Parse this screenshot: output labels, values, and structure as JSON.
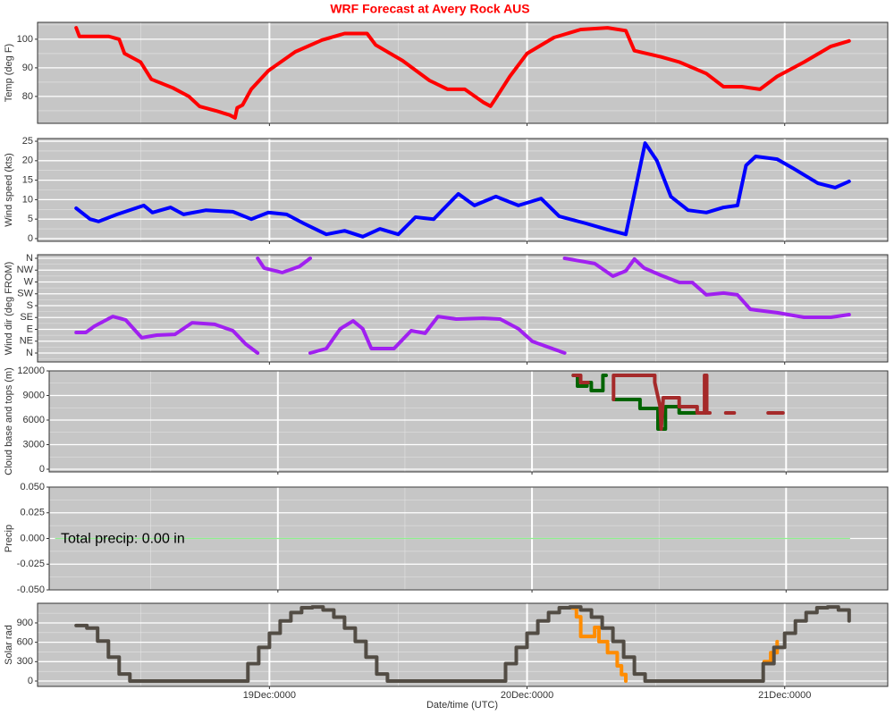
{
  "title": "WRF Forecast at Avery Rock AUS",
  "xlabel": "Date/time (UTC)",
  "chart_data": [
    {
      "type": "line",
      "ylabel": "Temp (deg F)",
      "xlim": [
        2.4,
        81.6
      ],
      "xticks": [
        24,
        48,
        72
      ],
      "ylim": [
        70.6,
        105.9
      ],
      "yticks": [
        80,
        90,
        100
      ],
      "grid": true,
      "series": [
        {
          "color": "#ff0000",
          "x": [
            6.0,
            6.3,
            9.0,
            10.0,
            10.5,
            12.0,
            13.0,
            15.0,
            16.5,
            17.5,
            19.0,
            20.3,
            20.8,
            21.0,
            21.5,
            22.3,
            23.9,
            26.4,
            28.9,
            31.0,
            33.1,
            33.9,
            36.4,
            38.9,
            40.6,
            42.2,
            43.9,
            44.6,
            45.1,
            46.4,
            48.0,
            50.5,
            53.0,
            55.5,
            57.2,
            58.0,
            60.5,
            62.2,
            64.7,
            66.3,
            68.0,
            69.7,
            71.3,
            73.8,
            76.3,
            78.0
          ],
          "values": [
            104,
            101,
            101,
            100,
            95,
            92,
            86,
            83,
            80,
            76.5,
            75,
            73.5,
            72.5,
            76,
            77,
            82.5,
            89,
            95.6,
            99.7,
            102,
            102,
            98,
            92.5,
            85.6,
            82.5,
            82.5,
            78,
            76.6,
            79.4,
            87,
            95,
            100.6,
            103.4,
            104,
            103,
            96,
            93.8,
            92,
            88,
            83.4,
            83.4,
            82.5,
            87,
            92,
            97.5,
            99.4
          ]
        }
      ]
    },
    {
      "type": "line",
      "ylabel": "Wind speed (kts)",
      "xlim": [
        2.4,
        81.6
      ],
      "xticks": [
        24,
        48,
        72
      ],
      "ylim": [
        -0.7,
        25.7
      ],
      "yticks": [
        0,
        5,
        10,
        15,
        20,
        25
      ],
      "grid": true,
      "series": [
        {
          "color": "#0000ff",
          "x": [
            6.0,
            7.3,
            8.1,
            9.8,
            12.3,
            13.1,
            14.8,
            16.0,
            18.1,
            20.6,
            22.3,
            23.9,
            25.6,
            27.2,
            29.3,
            31.0,
            32.7,
            34.3,
            36.0,
            37.6,
            39.3,
            40.1,
            41.6,
            43.1,
            45.1,
            47.2,
            49.3,
            51.0,
            53.5,
            55.5,
            57.2,
            58.3,
            59.0,
            60.1,
            61.4,
            63.0,
            64.7,
            66.3,
            67.6,
            68.4,
            69.3,
            71.3,
            73.0,
            75.1,
            76.7,
            78.0
          ],
          "values": [
            7.8,
            5,
            4.4,
            6.2,
            8.5,
            6.7,
            8,
            6.2,
            7.3,
            6.9,
            5,
            6.7,
            6.2,
            3.9,
            1.1,
            2,
            0.5,
            2.5,
            1.1,
            5.5,
            5,
            7.3,
            11.5,
            8.5,
            10.8,
            8.5,
            10.3,
            5.7,
            3.9,
            2.3,
            1.1,
            15.4,
            24.5,
            20,
            10.8,
            7.3,
            6.7,
            8,
            8.5,
            18.8,
            21.1,
            20.4,
            17.7,
            14.2,
            13.1,
            14.7
          ]
        }
      ]
    },
    {
      "type": "line",
      "ylabel": "Wind dir (deg FROM)",
      "xlim": [
        2.4,
        81.6
      ],
      "xticks": [
        24,
        48,
        72
      ],
      "ylim": [
        -34,
        373.6
      ],
      "yticks": [
        {
          "value": 0,
          "label": "N"
        },
        {
          "value": 45,
          "label": "NE"
        },
        {
          "value": 90,
          "label": "E"
        },
        {
          "value": 135,
          "label": "SE"
        },
        {
          "value": 180,
          "label": "S"
        },
        {
          "value": 225,
          "label": "SW"
        },
        {
          "value": 270,
          "label": "W"
        },
        {
          "value": 315,
          "label": "NW"
        },
        {
          "value": 360,
          "label": "N"
        }
      ],
      "grid": true,
      "series": [
        {
          "color": "#a020f0",
          "x": [
            6.0,
            6.9,
            7.7,
            9.4,
            10.6,
            12.1,
            13.5,
            15.2,
            16.8,
            18.9,
            20.6,
            21.8,
            22.9,
            null,
            22.9,
            23.5,
            25.2,
            26.8,
            27.8,
            null,
            27.8,
            29.3,
            30.6,
            31.8,
            32.7,
            33.5,
            35.6,
            37.2,
            38.5,
            39.7,
            41.4,
            43.9,
            45.5,
            47.2,
            48.5,
            51.5,
            null,
            51.5,
            54.3,
            56.0,
            57.2,
            58.0,
            58.9,
            60.5,
            62.2,
            63.4,
            64.7,
            66.3,
            67.6,
            68.8,
            71.3,
            73.8,
            76.3,
            78.0
          ],
          "values": [
            78,
            78,
            102,
            139,
            126,
            58,
            68,
            71,
            115,
            109,
            85,
            34,
            0,
            null,
            360,
            323,
            306,
            329,
            360,
            null,
            0,
            17,
            92,
            122,
            92,
            17,
            17,
            85,
            75,
            139,
            129,
            132,
            129,
            92,
            44,
            0,
            null,
            360,
            340,
            292,
            312,
            357,
            323,
            295,
            268,
            268,
            221,
            228,
            221,
            166,
            153,
            136,
            136,
            146
          ]
        }
      ]
    },
    {
      "type": "line",
      "ylabel": "Cloud base and tops (m)",
      "xlim": [
        2.4,
        81.6
      ],
      "xticks": [
        24,
        48,
        72
      ],
      "ylim": [
        -327,
        12000
      ],
      "yticks": [
        0,
        3000,
        6000,
        9000,
        12000
      ],
      "grid": true,
      "series": [
        {
          "color": "#006400",
          "x": [
            51.9,
            52.3,
            52.3,
            53.2,
            53.2,
            53.6,
            53.6,
            54.7,
            54.7,
            55.0,
            null,
            55.7,
            58.2,
            58.2,
            59.9,
            59.9,
            60.6,
            60.6,
            61.9,
            61.9,
            64.4
          ],
          "values": [
            11450,
            11450,
            10150,
            10150,
            10580,
            10580,
            9600,
            9600,
            11450,
            11450,
            null,
            8510,
            8510,
            7420,
            7420,
            4910,
            4910,
            7640,
            7640,
            6870,
            6870
          ]
        },
        {
          "color": "#a52a2a",
          "x": [
            51.9,
            52.6,
            52.6,
            53.3,
            null,
            55.7,
            55.7,
            59.6,
            59.6,
            60.1,
            60.2,
            60.4,
            61.9,
            61.9,
            63.6,
            63.6,
            64.3,
            64.3,
            64.5,
            64.5,
            64.8,
            null,
            66.3,
            67.1,
            null,
            70.3,
            71.7
          ],
          "values": [
            11450,
            11450,
            10580,
            10580,
            null,
            8510,
            11450,
            11450,
            10580,
            7640,
            4910,
            8730,
            8730,
            7640,
            7640,
            6870,
            6870,
            11450,
            11450,
            6870,
            6870,
            null,
            6870,
            6870,
            null,
            6870,
            6870
          ]
        }
      ]
    },
    {
      "type": "line",
      "ylabel": "Precip",
      "xlim": [
        2.4,
        81.6
      ],
      "xticks": [
        24,
        48,
        72
      ],
      "ylim": [
        -0.05,
        0.05
      ],
      "yticks": [
        {
          "value": -0.05,
          "label": "-0.050"
        },
        {
          "value": -0.025,
          "label": "-0.025"
        },
        {
          "value": 0,
          "label": "0.000"
        },
        {
          "value": 0.025,
          "label": "0.025"
        },
        {
          "value": 0.05,
          "label": "0.050"
        }
      ],
      "grid": true,
      "annotation": "Total precip: 0.00 in",
      "series": [
        {
          "color": "#90ee90",
          "x": [
            3,
            78
          ],
          "values": [
            0,
            0
          ]
        }
      ]
    },
    {
      "type": "line",
      "ylabel": "Solar rad",
      "xlim": [
        2.4,
        81.6
      ],
      "xticks": [
        {
          "value": 24,
          "label": "19Dec:0000"
        },
        {
          "value": 48,
          "label": "20Dec:0000"
        },
        {
          "value": 72,
          "label": "21Dec:0000"
        }
      ],
      "ylim": [
        -83,
        1204
      ],
      "yticks": [
        0,
        300,
        600,
        900
      ],
      "grid": true,
      "step": true,
      "series": [
        {
          "color": "#ff8c00",
          "x": [
            52.2,
            52.6,
            53.0,
            53.9,
            54.3,
            54.7,
            55.5,
            56.4,
            56.8,
            57.2,
            null,
            70.1,
            70.7,
            71.3
          ],
          "values": [
            1130,
            995,
            690,
            690,
            830,
            610,
            440,
            235,
            100,
            0,
            null,
            300,
            440,
            610
          ]
        },
        {
          "color": "#524c44",
          "x": [
            6,
            7,
            8,
            9,
            10,
            11,
            12,
            13,
            14,
            15,
            16,
            17,
            18,
            19,
            20,
            21,
            22,
            23,
            24,
            25,
            26,
            27,
            28,
            29,
            30,
            31,
            32,
            33,
            34,
            35,
            36,
            37,
            38,
            39,
            40,
            41,
            42,
            43,
            44,
            45,
            46,
            47,
            48,
            49,
            50,
            51,
            52,
            53,
            54,
            55,
            56,
            57,
            58,
            59,
            60,
            61,
            62,
            63,
            64,
            65,
            66,
            67,
            68,
            69,
            70,
            71,
            72,
            73,
            74,
            75,
            76,
            77,
            78
          ],
          "values": [
            860,
            820,
            620,
            370,
            110,
            0,
            0,
            0,
            0,
            0,
            0,
            0,
            0,
            0,
            0,
            0,
            270,
            520,
            740,
            930,
            1060,
            1135,
            1147,
            1100,
            990,
            820,
            615,
            370,
            110,
            0,
            0,
            0,
            0,
            0,
            0,
            0,
            0,
            0,
            0,
            0,
            270,
            520,
            740,
            930,
            1060,
            1135,
            1147,
            1100,
            990,
            820,
            615,
            370,
            110,
            0,
            0,
            0,
            0,
            0,
            0,
            0,
            0,
            0,
            0,
            0,
            270,
            520,
            740,
            930,
            1060,
            1135,
            1147,
            1100,
            930
          ]
        }
      ]
    }
  ]
}
